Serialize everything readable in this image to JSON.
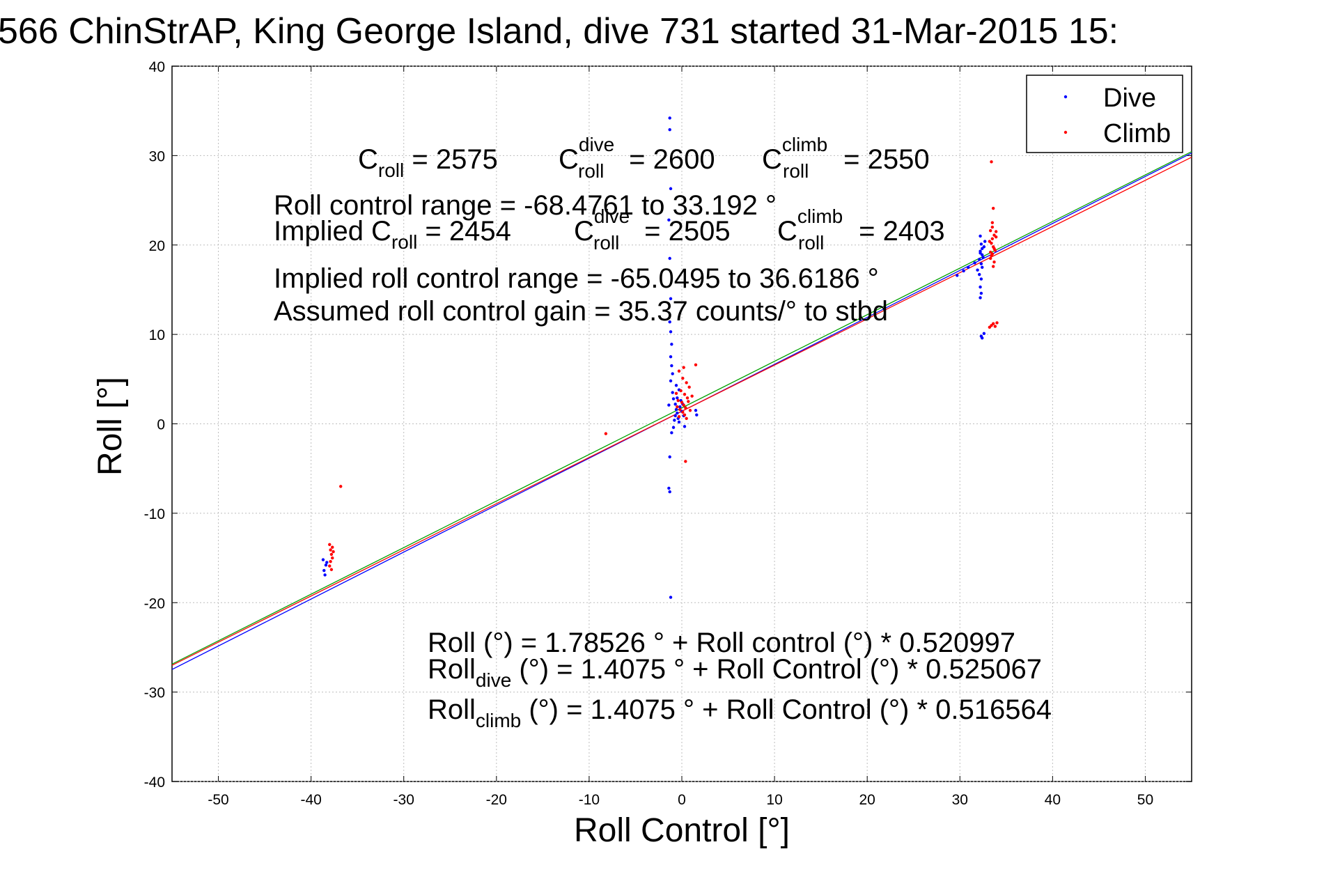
{
  "chart_data": {
    "type": "scatter",
    "title": "566 ChinStrAP, King George Island, dive 731 started 31-Mar-2015 15:",
    "xlabel": "Roll Control [°]",
    "ylabel": "Roll [°]",
    "xlim": [
      -55,
      55
    ],
    "ylim": [
      -40,
      40
    ],
    "x_ticks": [
      -50,
      -40,
      -30,
      -20,
      -10,
      0,
      10,
      20,
      30,
      40,
      50
    ],
    "y_ticks": [
      -40,
      -30,
      -20,
      -10,
      0,
      10,
      20,
      30,
      40
    ],
    "grid": true,
    "legend": {
      "position": "top-right",
      "entries": [
        "Dive",
        "Climb"
      ]
    },
    "series": [
      {
        "name": "Dive",
        "color": "#0000ff",
        "points": [
          [
            -38.7,
            -15.2
          ],
          [
            -38.6,
            -16.4
          ],
          [
            -38.5,
            -16.9
          ],
          [
            -38.4,
            -15.8
          ],
          [
            -38.3,
            -15.5
          ],
          [
            -1.3,
            34.2
          ],
          [
            -1.3,
            32.9
          ],
          [
            -1.2,
            26.3
          ],
          [
            -1.4,
            22.8
          ],
          [
            -1.3,
            18.5
          ],
          [
            -1.2,
            14.0
          ],
          [
            -1.3,
            11.4
          ],
          [
            -1.2,
            10.3
          ],
          [
            -1.1,
            8.9
          ],
          [
            -1.2,
            7.5
          ],
          [
            -1.1,
            6.5
          ],
          [
            -1.2,
            4.8
          ],
          [
            -1.0,
            3.5
          ],
          [
            -0.9,
            2.8
          ],
          [
            -0.7,
            2.2
          ],
          [
            -0.6,
            1.6
          ],
          [
            -0.5,
            1.2
          ],
          [
            -0.4,
            0.6
          ],
          [
            -0.3,
            0.2
          ],
          [
            -0.5,
            2.9
          ],
          [
            -0.2,
            1.9
          ],
          [
            0.0,
            1.4
          ],
          [
            0.2,
            0.9
          ],
          [
            -0.8,
            0.4
          ],
          [
            -0.9,
            -0.4
          ],
          [
            -1.1,
            -1.0
          ],
          [
            -1.3,
            -3.7
          ],
          [
            -1.4,
            -7.2
          ],
          [
            -1.3,
            -7.6
          ],
          [
            -1.2,
            -19.4
          ],
          [
            -0.6,
            4.3
          ],
          [
            -0.3,
            3.8
          ],
          [
            -0.1,
            2.6
          ],
          [
            0.1,
            2.2
          ],
          [
            1.5,
            1.5
          ],
          [
            1.6,
            1.0
          ],
          [
            -1.4,
            2.1
          ],
          [
            -0.7,
            0.9
          ],
          [
            0.3,
            -0.3
          ],
          [
            -1.0,
            5.6
          ],
          [
            29.7,
            16.6
          ],
          [
            30.4,
            17.1
          ],
          [
            30.9,
            17.5
          ],
          [
            31.6,
            18.0
          ],
          [
            31.9,
            17.2
          ],
          [
            32.1,
            18.4
          ],
          [
            32.2,
            19.3
          ],
          [
            32.3,
            20.1
          ],
          [
            32.2,
            21.0
          ],
          [
            32.3,
            17.9
          ],
          [
            32.4,
            19.6
          ],
          [
            32.3,
            16.2
          ],
          [
            32.2,
            15.3
          ],
          [
            32.3,
            14.6
          ],
          [
            32.2,
            14.1
          ],
          [
            32.4,
            18.9
          ],
          [
            32.5,
            18.6
          ],
          [
            32.6,
            19.8
          ],
          [
            32.3,
            9.8
          ],
          [
            32.4,
            9.6
          ],
          [
            32.6,
            10.1
          ],
          [
            32.2,
            19.1
          ],
          [
            32.7,
            20.4
          ],
          [
            32.1,
            16.7
          ],
          [
            32.4,
            17.5
          ]
        ]
      },
      {
        "name": "Climb",
        "color": "#ff0000",
        "points": [
          [
            -36.8,
            -7.0
          ],
          [
            -38.0,
            -13.5
          ],
          [
            -37.9,
            -14.1
          ],
          [
            -37.8,
            -14.6
          ],
          [
            -37.7,
            -15.0
          ],
          [
            -37.9,
            -15.4
          ],
          [
            -38.0,
            -15.9
          ],
          [
            -37.6,
            -14.3
          ],
          [
            -37.8,
            -16.3
          ],
          [
            -37.7,
            -13.8
          ],
          [
            -8.2,
            -1.1
          ],
          [
            0.4,
            -4.2
          ],
          [
            1.5,
            6.6
          ],
          [
            0.2,
            6.3
          ],
          [
            -0.3,
            5.9
          ],
          [
            0.1,
            5.1
          ],
          [
            0.5,
            4.6
          ],
          [
            0.8,
            4.1
          ],
          [
            -0.1,
            3.7
          ],
          [
            0.3,
            3.3
          ],
          [
            0.6,
            2.9
          ],
          [
            -0.4,
            2.6
          ],
          [
            0.0,
            2.4
          ],
          [
            0.2,
            2.1
          ],
          [
            0.4,
            1.8
          ],
          [
            -0.2,
            1.6
          ],
          [
            0.1,
            1.3
          ],
          [
            0.3,
            1.0
          ],
          [
            -0.5,
            1.9
          ],
          [
            0.7,
            2.5
          ],
          [
            1.1,
            3.1
          ],
          [
            -0.6,
            3.4
          ],
          [
            0.9,
            1.5
          ],
          [
            -0.3,
            0.8
          ],
          [
            0.5,
            0.6
          ],
          [
            33.4,
            29.3
          ],
          [
            33.6,
            24.1
          ],
          [
            33.5,
            22.5
          ],
          [
            33.3,
            21.6
          ],
          [
            33.7,
            21.1
          ],
          [
            33.5,
            20.7
          ],
          [
            33.4,
            20.2
          ],
          [
            33.6,
            19.8
          ],
          [
            33.8,
            19.4
          ],
          [
            33.5,
            19.0
          ],
          [
            33.3,
            18.5
          ],
          [
            33.7,
            18.1
          ],
          [
            33.6,
            17.6
          ],
          [
            33.2,
            20.4
          ],
          [
            33.9,
            20.9
          ],
          [
            33.4,
            11.0
          ],
          [
            33.6,
            11.2
          ],
          [
            33.8,
            10.9
          ],
          [
            34.0,
            11.3
          ],
          [
            33.2,
            10.8
          ],
          [
            33.5,
            22.0
          ],
          [
            33.7,
            19.6
          ],
          [
            33.4,
            18.8
          ],
          [
            33.9,
            21.5
          ],
          [
            33.3,
            19.2
          ]
        ]
      }
    ],
    "fit_lines": [
      {
        "color": "#00a000",
        "intercept": 1.78526,
        "slope": 0.520997
      },
      {
        "color": "#0000ff",
        "intercept": 1.4075,
        "slope": 0.525067
      },
      {
        "color": "#ff0000",
        "intercept": 1.4075,
        "slope": 0.516564
      }
    ],
    "annotations": {
      "c_roll": {
        "base": "C",
        "sub": "roll",
        "value": " = 2575"
      },
      "c_roll_dive": {
        "base": "C",
        "sup": "dive",
        "sub": "roll",
        "value": " = 2600"
      },
      "c_roll_climb": {
        "base": "C",
        "sup": "climb",
        "sub": "roll",
        "value": " = 2550"
      },
      "roll_control_range": "Roll control range = -68.4761 to 33.192 °",
      "implied_c_roll": {
        "prefix": "Implied C",
        "sub": "roll",
        "value": " = 2454"
      },
      "implied_c_roll_dive": {
        "base": "C",
        "sup": "dive",
        "sub": "roll",
        "value": " = 2505"
      },
      "implied_c_roll_climb": {
        "base": "C",
        "sup": "climb",
        "sub": "roll",
        "value": " = 2403"
      },
      "implied_range": "Implied roll control range = -65.0495 to 36.6186 °",
      "assumed_gain": "Assumed roll control gain = 35.37 counts/° to stbd",
      "fit_all": "Roll (°) = 1.78526 ° + Roll control (°) * 0.520997",
      "fit_dive": {
        "base": "Roll",
        "sub": "dive",
        "rest": " (°) = 1.4075 ° + Roll Control (°) * 0.525067"
      },
      "fit_climb": {
        "base": "Roll",
        "sub": "climb",
        "rest": " (°) = 1.4075 ° + Roll Control (°) * 0.516564"
      }
    }
  }
}
